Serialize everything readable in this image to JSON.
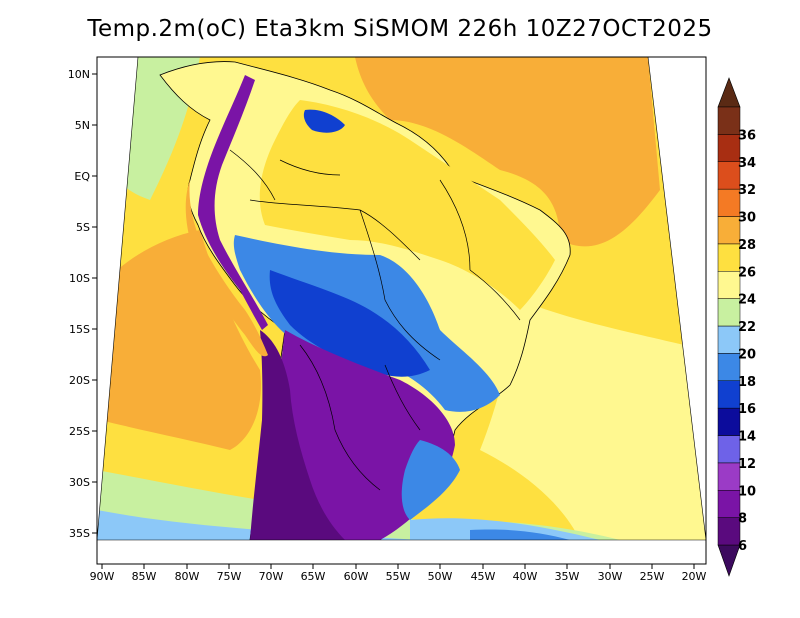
{
  "title": "Temp.2m(oC) Eta3km SiSMOM 226h 10Z27OCT2025",
  "lat_labels": [
    "10N",
    "5N",
    "EQ",
    "5S",
    "10S",
    "15S",
    "20S",
    "25S",
    "30S",
    "35S"
  ],
  "lon_labels": [
    "90W",
    "85W",
    "80W",
    "75W",
    "70W",
    "65W",
    "60W",
    "55W",
    "50W",
    "45W",
    "40W",
    "35W",
    "30W",
    "25W",
    "20W"
  ],
  "colorbar": {
    "levels": [
      "6",
      "8",
      "10",
      "12",
      "14",
      "16",
      "18",
      "20",
      "22",
      "24",
      "26",
      "28",
      "30",
      "32",
      "34",
      "36"
    ],
    "colors": [
      "#5a0a7e",
      "#7a14a6",
      "#9b3bc6",
      "#6e62e8",
      "#0c0c9c",
      "#1040d0",
      "#3c88e6",
      "#8cc8f8",
      "#c8f0a0",
      "#fff890",
      "#fee040",
      "#f8ae38",
      "#f47a24",
      "#dc4e1c",
      "#a82e12",
      "#7a3018"
    ],
    "under_color": "#3c0a5e",
    "over_color": "#5a2a14"
  },
  "map_colors": {
    "ocean_warm": "#f8ae38",
    "ocean_mild": "#fee040",
    "ocean_cool": "#fff890",
    "ocean_cold": "#c8f0a0",
    "ocean_colder": "#8cc8f8",
    "land_hot": "#fee040",
    "land_warm": "#fff890",
    "land_mild": "#c8f0a0",
    "land_cool": "#3c88e6",
    "land_cold": "#1040d0",
    "land_very_cold": "#7a14a6",
    "land_coldest": "#5a0a7e"
  }
}
